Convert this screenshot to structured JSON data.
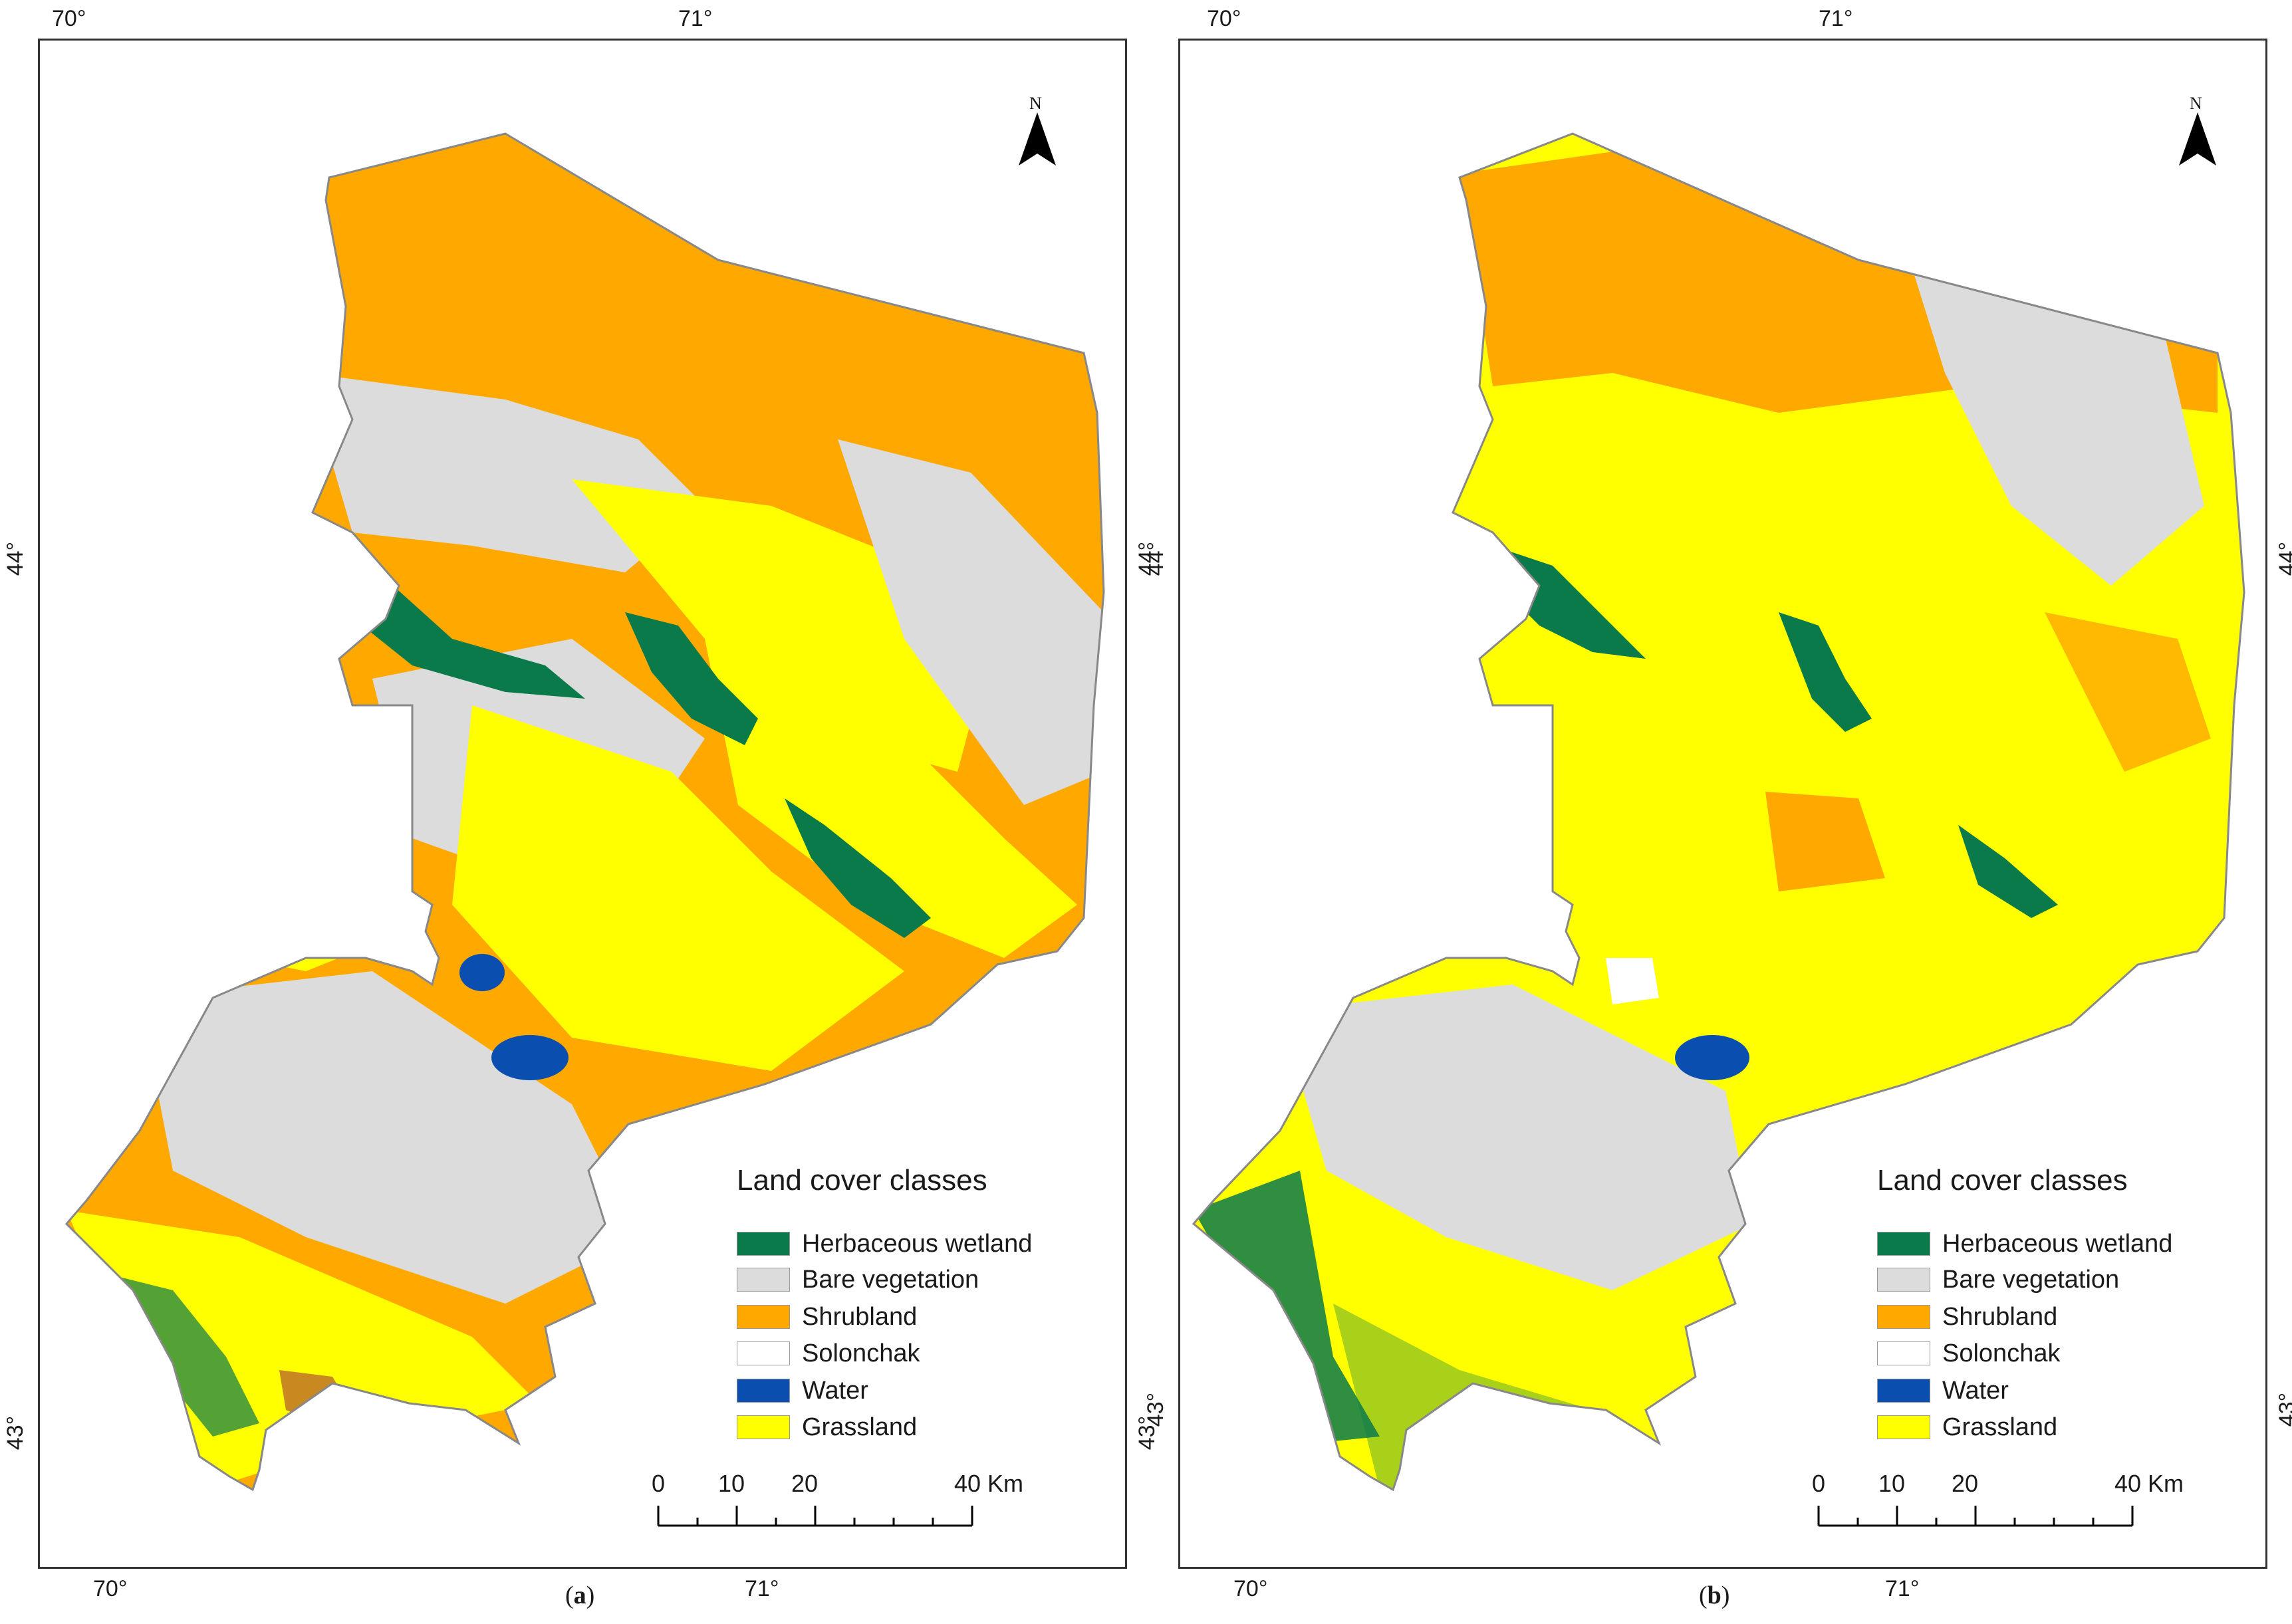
{
  "legend": {
    "title": "Land cover classes",
    "classes": [
      {
        "label": "Herbaceous wetland",
        "color": "#0b7a4b"
      },
      {
        "label": "Bare vegetation",
        "color": "#dcdcdc"
      },
      {
        "label": "Shrubland",
        "color": "#ffa800"
      },
      {
        "label": "Solonchak",
        "color": "#ffffff"
      },
      {
        "label": "Water",
        "color": "#0a4fb0"
      },
      {
        "label": "Grassland",
        "color": "#ffff00"
      }
    ]
  },
  "graticule": {
    "lon_labels": [
      "70°",
      "71°"
    ],
    "lat_labels": [
      "44°",
      "43°"
    ]
  },
  "scale": {
    "ticks": [
      "0",
      "10",
      "20",
      "40 Km"
    ]
  },
  "north": "N",
  "panels": [
    {
      "id": "a",
      "caption_open": "(",
      "caption_letter": "a",
      "caption_close": ")"
    },
    {
      "id": "b",
      "caption_open": "(",
      "caption_letter": "b",
      "caption_close": ")"
    }
  ]
}
